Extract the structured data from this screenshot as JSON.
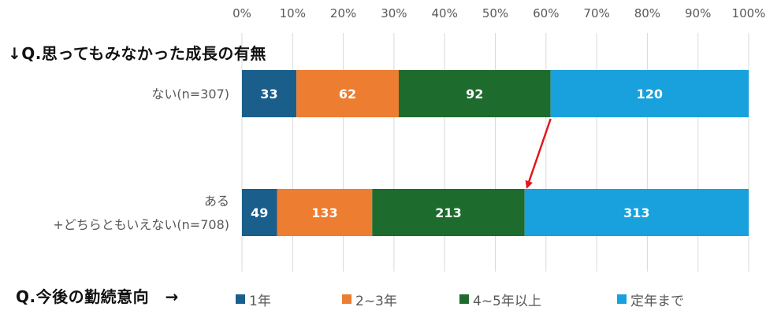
{
  "question_title": "↓Q.思ってもみなかった成長の有無",
  "axis_title": "Q.今後の勤続意向　→",
  "colors": {
    "1年": "#1a5f8c",
    "2~3年": "#ed7d31",
    "4~5年以上": "#1e6b2e",
    "定年まで": "#18a1dc",
    "arrow": "#e3161c",
    "grid": "#d9d9d9",
    "tick_text": "#595959"
  },
  "chart_data": {
    "type": "bar",
    "orientation": "horizontal",
    "stacked": "percent",
    "categories": [
      [
        "ない(n=307)"
      ],
      [
        "ある",
        "+どちらともいえない(n=708)"
      ]
    ],
    "series": [
      {
        "name": "1年",
        "values": [
          33,
          49
        ]
      },
      {
        "name": "2~3年",
        "values": [
          62,
          133
        ]
      },
      {
        "name": "4~5年以上",
        "values": [
          92,
          213
        ]
      },
      {
        "name": "定年まで",
        "values": [
          120,
          313
        ]
      }
    ],
    "xlim": [
      0,
      100
    ],
    "x_ticks": [
      "0%",
      "10%",
      "20%",
      "30%",
      "40%",
      "50%",
      "60%",
      "70%",
      "80%",
      "90%",
      "100%"
    ],
    "grid": true,
    "legend_position": "bottom",
    "annotation": "arrow from the boundary after '4~5年以上' in row 1 down to the same boundary in row 2"
  }
}
